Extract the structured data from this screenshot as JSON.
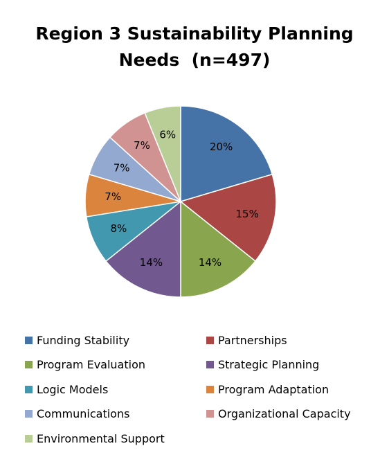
{
  "chart_data": {
    "type": "pie",
    "title_lines": [
      "Region 3 Sustainability Planning",
      "Needs  (n=497)"
    ],
    "slices": [
      {
        "name": "Funding Stability",
        "value": 20,
        "label": "20%",
        "color": "#4572A7"
      },
      {
        "name": "Partnerships",
        "value": 15,
        "label": "15%",
        "color": "#AA4643"
      },
      {
        "name": "Program Evaluation",
        "value": 14,
        "label": "14%",
        "color": "#89A54E"
      },
      {
        "name": "Strategic Planning",
        "value": 14,
        "label": "14%",
        "color": "#71588F"
      },
      {
        "name": "Logic Models",
        "value": 8,
        "label": "8%",
        "color": "#4198AF"
      },
      {
        "name": "Program Adaptation",
        "value": 7,
        "label": "7%",
        "color": "#DB843D"
      },
      {
        "name": "Communications",
        "value": 7,
        "label": "7%",
        "color": "#93A9CF"
      },
      {
        "name": "Organizational Capacity",
        "value": 7,
        "label": "7%",
        "color": "#D19392"
      },
      {
        "name": "Environmental Support",
        "value": 6,
        "label": "6%",
        "color": "#B9CD96"
      }
    ],
    "legend_position": "bottom"
  }
}
